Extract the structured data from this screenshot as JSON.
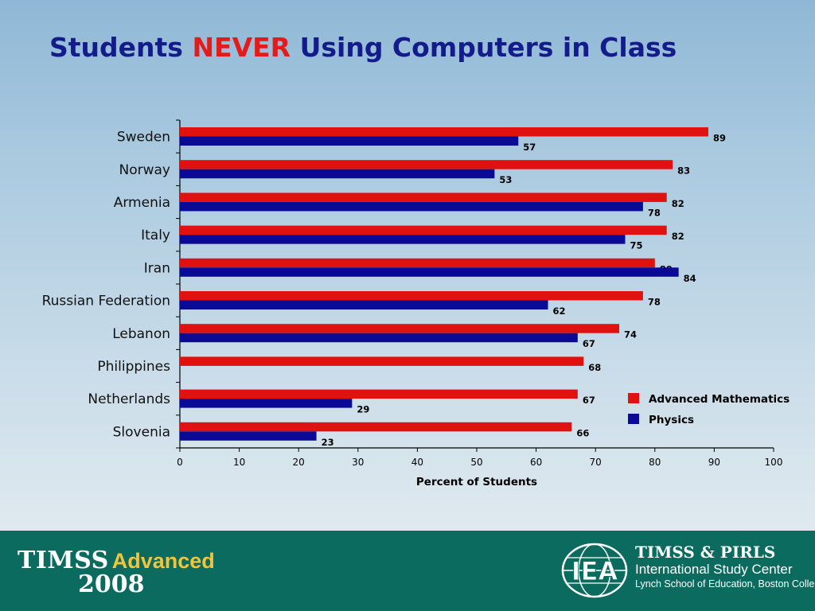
{
  "title": {
    "prefix": "Students ",
    "highlight": "NEVER",
    "suffix": " Using Computers in Class",
    "highlight_color": "#e51b1b",
    "color": "#141b8a"
  },
  "chart_data": {
    "type": "bar",
    "orientation": "horizontal",
    "categories": [
      "Sweden",
      "Norway",
      "Armenia",
      "Italy",
      "Iran",
      "Russian Federation",
      "Lebanon",
      "Philippines",
      "Netherlands",
      "Slovenia"
    ],
    "series": [
      {
        "name": "Advanced Mathematics",
        "color": "#e0120f",
        "values": [
          89,
          83,
          82,
          82,
          80,
          78,
          74,
          68,
          67,
          66
        ]
      },
      {
        "name": "Physics",
        "color": "#0a0a96",
        "values": [
          57,
          53,
          78,
          75,
          84,
          62,
          67,
          null,
          29,
          23
        ]
      }
    ],
    "xlabel": "Percent of Students",
    "xlim": [
      0,
      100
    ],
    "xticks": [
      0,
      10,
      20,
      30,
      40,
      50,
      60,
      70,
      80,
      90,
      100
    ],
    "legend_position": "right",
    "grid": false
  },
  "footer": {
    "logo_main": "TIMSS",
    "logo_advanced": "Advanced",
    "logo_year": "2008",
    "iea_mark": "IEA",
    "center_line1": "TIMSS & PIRLS",
    "center_line2": "International Study Center",
    "center_line3": "Lynch School of Education, Boston College"
  }
}
